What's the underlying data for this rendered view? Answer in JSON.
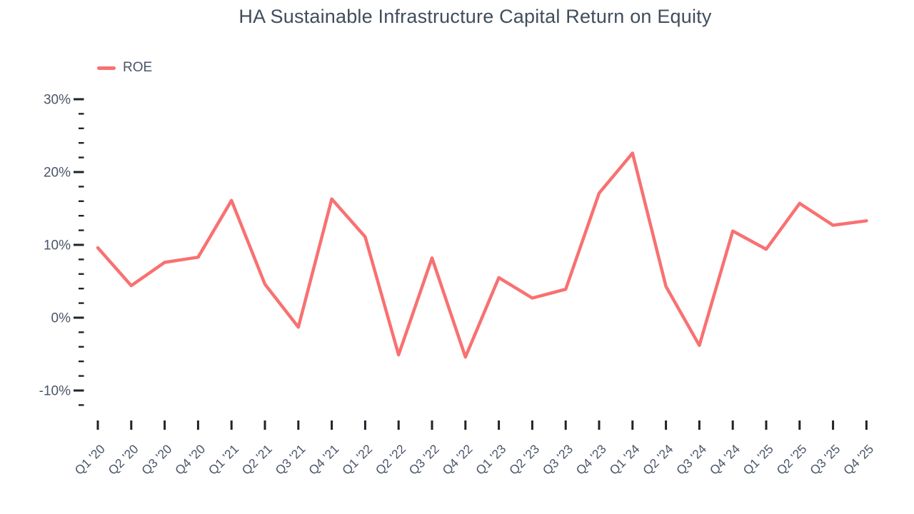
{
  "colors": {
    "line": "#f87171",
    "axis_text": "#4a5568",
    "title_text": "#404d5c",
    "tick": "#1f2329",
    "background": "#ffffff"
  },
  "chart_data": {
    "type": "line",
    "title": "HA Sustainable Infrastructure Capital Return on Equity",
    "legend_position": "top-left",
    "grid": false,
    "unit": "%",
    "categories": [
      "Q1 '20",
      "Q2 '20",
      "Q3 '20",
      "Q4 '20",
      "Q1 '21",
      "Q2 '21",
      "Q3 '21",
      "Q4 '21",
      "Q1 '22",
      "Q2 '22",
      "Q3 '22",
      "Q4 '22",
      "Q1 '23",
      "Q2 '23",
      "Q3 '23",
      "Q4 '23",
      "Q1 '24",
      "Q2 '24",
      "Q3 '24",
      "Q4 '24",
      "Q1 '25",
      "Q2 '25",
      "Q3 '25",
      "Q4 '25"
    ],
    "series": [
      {
        "name": "ROE",
        "values": [
          9.6,
          4.4,
          7.6,
          8.3,
          16.1,
          4.6,
          -1.3,
          16.3,
          11.1,
          -5.1,
          8.2,
          -5.4,
          5.5,
          2.7,
          3.9,
          17.1,
          22.6,
          4.3,
          -3.8,
          11.9,
          9.4,
          15.7,
          12.7,
          13.3
        ]
      }
    ],
    "xlabel": "",
    "ylabel": "",
    "y_axis": {
      "major_values": [
        30,
        20,
        10,
        0,
        -10
      ],
      "major_labels": [
        "30%",
        "20%",
        "10%",
        "0%",
        "-10%"
      ],
      "minor_step": 2,
      "min": -12,
      "max": 30
    }
  }
}
